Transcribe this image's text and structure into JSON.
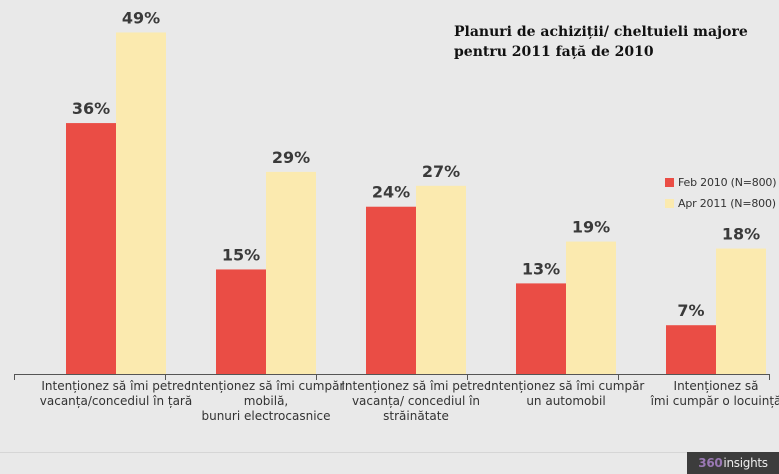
{
  "chart_data": {
    "type": "bar",
    "title": "Planuri de achiziții/ cheltuieli majore\npentru 2011 față de 2010",
    "xlabel": "",
    "ylabel": "",
    "ylim": [
      0,
      50
    ],
    "grid": false,
    "legend_position": "right",
    "categories": [
      [
        "Intenționez să îmi petrec",
        "vacanța/concediul în țară"
      ],
      [
        "Intenționez să îmi cumpăr",
        "mobilă,",
        "bunuri electrocasnice"
      ],
      [
        "Intenționez să îmi petrec",
        "vacanța/ concediul în",
        "străinătate"
      ],
      [
        "Intenționez să îmi cumpăr",
        "un automobil"
      ],
      [
        "Intenționez să",
        "îmi cumpăr o locuință"
      ]
    ],
    "series": [
      {
        "name": "Feb 2010 (N=800)",
        "values": [
          36,
          15,
          24,
          13,
          7
        ],
        "labels": [
          "36%",
          "15%",
          "24%",
          "13%",
          "7%"
        ],
        "color": "#ea4d45"
      },
      {
        "name": "Apr 2011 (N=800)",
        "values": [
          49,
          29,
          27,
          19,
          18
        ],
        "labels": [
          "49%",
          "29%",
          "27%",
          "19%",
          "18%"
        ],
        "color": "#fbeaaf"
      }
    ]
  },
  "brand": {
    "prefix": "360",
    "name": "insights"
  }
}
